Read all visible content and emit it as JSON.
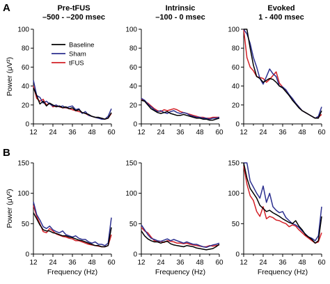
{
  "figure": {
    "panel_letters": [
      "A",
      "B"
    ],
    "columns": [
      {
        "title": [
          "Pre-tFUS",
          "–500 - –200 msec"
        ]
      },
      {
        "title": [
          "Intrinsic",
          "–100 - 0 msec"
        ]
      },
      {
        "title": [
          "Evoked",
          "1 - 400 msec"
        ]
      }
    ]
  },
  "colors": {
    "baseline": "#000000",
    "sham": "#2b2f8f",
    "tfus": "#d31f26"
  },
  "chart_data": [
    {
      "id": "A-pre",
      "type": "line",
      "xlabel": "",
      "ylabel": "Power (μV²)",
      "xlim": [
        12,
        60
      ],
      "ylim": [
        0,
        100
      ],
      "xticks": [
        12,
        24,
        36,
        48,
        60
      ],
      "yticks": [
        0,
        20,
        40,
        60,
        80,
        100
      ],
      "legend": {
        "placement": "top-right",
        "entries": [
          "Baseline",
          "Sham",
          "tFUS"
        ]
      },
      "series": [
        {
          "name": "Baseline",
          "color_key": "baseline",
          "x": [
            12,
            14,
            16,
            18,
            20,
            22,
            24,
            26,
            28,
            30,
            32,
            34,
            36,
            38,
            40,
            42,
            44,
            46,
            48,
            50,
            52,
            54,
            56,
            58,
            60
          ],
          "y": [
            38,
            30,
            21,
            24,
            19,
            22,
            20,
            18,
            19,
            17,
            18,
            16,
            17,
            14,
            15,
            12,
            11,
            10,
            8,
            7,
            7,
            6,
            5,
            6,
            12
          ]
        },
        {
          "name": "Sham",
          "color_key": "sham",
          "x": [
            12,
            14,
            16,
            18,
            20,
            22,
            24,
            26,
            28,
            30,
            32,
            34,
            36,
            38,
            40,
            42,
            44,
            46,
            48,
            50,
            52,
            54,
            56,
            58,
            60
          ],
          "y": [
            46,
            30,
            28,
            22,
            24,
            21,
            19,
            20,
            18,
            19,
            17,
            18,
            19,
            15,
            16,
            11,
            13,
            9,
            8,
            7,
            6,
            5,
            5,
            8,
            16
          ]
        },
        {
          "name": "tFUS",
          "color_key": "tfus",
          "x": [
            12,
            14,
            16,
            18,
            20,
            22,
            24,
            26,
            28,
            30,
            32,
            34,
            36,
            38,
            40,
            42,
            44,
            46,
            48,
            50,
            52,
            54,
            56,
            58,
            60
          ],
          "y": [
            40,
            27,
            24,
            26,
            20,
            22,
            18,
            19,
            18,
            17,
            17,
            16,
            15,
            14,
            13,
            12,
            11,
            9,
            8,
            7,
            6,
            6,
            5,
            6,
            11
          ]
        }
      ]
    },
    {
      "id": "A-intrinsic",
      "type": "line",
      "xlabel": "",
      "ylabel": "",
      "xlim": [
        12,
        60
      ],
      "ylim": [
        0,
        100
      ],
      "xticks": [
        12,
        24,
        36,
        48,
        60
      ],
      "yticks": [
        0,
        20,
        40,
        60,
        80,
        100
      ],
      "series": [
        {
          "name": "Baseline",
          "color_key": "baseline",
          "x": [
            12,
            14,
            16,
            18,
            20,
            22,
            24,
            26,
            28,
            30,
            32,
            34,
            36,
            38,
            40,
            42,
            44,
            46,
            48,
            50,
            52,
            54,
            56,
            58,
            60
          ],
          "y": [
            25,
            24,
            20,
            16,
            14,
            12,
            11,
            12,
            13,
            11,
            10,
            9,
            9,
            10,
            9,
            8,
            7,
            6,
            6,
            5,
            5,
            4,
            4,
            5,
            6
          ]
        },
        {
          "name": "Sham",
          "color_key": "sham",
          "x": [
            12,
            14,
            16,
            18,
            20,
            22,
            24,
            26,
            28,
            30,
            32,
            34,
            36,
            38,
            40,
            42,
            44,
            46,
            48,
            50,
            52,
            54,
            56,
            58,
            60
          ],
          "y": [
            27,
            25,
            21,
            18,
            15,
            13,
            14,
            12,
            11,
            13,
            14,
            12,
            11,
            12,
            11,
            9,
            8,
            7,
            7,
            6,
            6,
            5,
            6,
            6,
            7
          ]
        },
        {
          "name": "tFUS",
          "color_key": "tfus",
          "x": [
            12,
            14,
            16,
            18,
            20,
            22,
            24,
            26,
            28,
            30,
            32,
            34,
            36,
            38,
            40,
            42,
            44,
            46,
            48,
            50,
            52,
            54,
            56,
            58,
            60
          ],
          "y": [
            26,
            24,
            22,
            19,
            16,
            14,
            13,
            15,
            14,
            15,
            16,
            15,
            13,
            12,
            11,
            10,
            9,
            8,
            7,
            7,
            6,
            6,
            7,
            7,
            7
          ]
        }
      ]
    },
    {
      "id": "A-evoked",
      "type": "line",
      "xlabel": "",
      "ylabel": "",
      "xlim": [
        12,
        60
      ],
      "ylim": [
        0,
        100
      ],
      "xticks": [
        12,
        24,
        36,
        48,
        60
      ],
      "yticks": [
        0,
        20,
        40,
        60,
        80,
        100
      ],
      "series": [
        {
          "name": "Baseline",
          "color_key": "baseline",
          "x": [
            12,
            14,
            16,
            18,
            20,
            22,
            24,
            26,
            28,
            30,
            32,
            34,
            36,
            38,
            40,
            42,
            44,
            46,
            48,
            50,
            52,
            54,
            56,
            58,
            60
          ],
          "y": [
            100,
            100,
            80,
            62,
            50,
            48,
            44,
            46,
            48,
            47,
            44,
            40,
            38,
            34,
            30,
            25,
            21,
            17,
            14,
            12,
            10,
            8,
            6,
            6,
            14
          ]
        },
        {
          "name": "Sham",
          "color_key": "sham",
          "x": [
            12,
            14,
            16,
            18,
            20,
            22,
            24,
            26,
            28,
            30,
            32,
            34,
            36,
            38,
            40,
            42,
            44,
            46,
            48,
            50,
            52,
            54,
            56,
            58,
            60
          ],
          "y": [
            100,
            95,
            85,
            70,
            60,
            48,
            42,
            50,
            58,
            53,
            50,
            40,
            39,
            36,
            31,
            27,
            22,
            18,
            14,
            12,
            10,
            8,
            6,
            8,
            18
          ]
        },
        {
          "name": "tFUS",
          "color_key": "tfus",
          "x": [
            12,
            14,
            16,
            18,
            20,
            22,
            24,
            26,
            28,
            30,
            32,
            34,
            36,
            38,
            40,
            42,
            44,
            46,
            48,
            50,
            52,
            54,
            56,
            58,
            60
          ],
          "y": [
            100,
            70,
            60,
            56,
            50,
            49,
            48,
            44,
            47,
            51,
            55,
            43,
            39,
            35,
            30,
            26,
            22,
            18,
            14,
            12,
            10,
            8,
            6,
            7,
            10
          ]
        }
      ]
    },
    {
      "id": "B-pre",
      "type": "line",
      "xlabel": "Frequency (Hz)",
      "ylabel": "Power (μV²)",
      "xlim": [
        12,
        60
      ],
      "ylim": [
        0,
        150
      ],
      "xticks": [
        12,
        24,
        36,
        48,
        60
      ],
      "yticks": [
        0,
        50,
        100,
        150
      ],
      "series": [
        {
          "name": "Baseline",
          "color_key": "baseline",
          "x": [
            12,
            14,
            16,
            18,
            20,
            22,
            24,
            26,
            28,
            30,
            32,
            34,
            36,
            38,
            40,
            42,
            44,
            46,
            48,
            50,
            52,
            54,
            56,
            58,
            60
          ],
          "y": [
            68,
            58,
            48,
            40,
            38,
            38,
            35,
            34,
            32,
            30,
            30,
            28,
            27,
            25,
            23,
            22,
            20,
            18,
            16,
            14,
            14,
            12,
            12,
            14,
            44
          ]
        },
        {
          "name": "Sham",
          "color_key": "sham",
          "x": [
            12,
            14,
            16,
            18,
            20,
            22,
            24,
            26,
            28,
            30,
            32,
            34,
            36,
            38,
            40,
            42,
            44,
            46,
            48,
            50,
            52,
            54,
            56,
            58,
            60
          ],
          "y": [
            86,
            65,
            56,
            45,
            42,
            46,
            40,
            37,
            35,
            38,
            32,
            30,
            28,
            30,
            26,
            24,
            24,
            20,
            18,
            20,
            16,
            16,
            14,
            18,
            60
          ]
        },
        {
          "name": "tFUS",
          "color_key": "tfus",
          "x": [
            12,
            14,
            16,
            18,
            20,
            22,
            24,
            26,
            28,
            30,
            32,
            34,
            36,
            38,
            40,
            42,
            44,
            46,
            48,
            50,
            52,
            54,
            56,
            58,
            60
          ],
          "y": [
            80,
            62,
            50,
            37,
            35,
            42,
            38,
            33,
            31,
            29,
            28,
            26,
            25,
            22,
            22,
            20,
            18,
            16,
            15,
            14,
            13,
            12,
            12,
            14,
            32
          ]
        }
      ]
    },
    {
      "id": "B-intrinsic",
      "type": "line",
      "xlabel": "Frequency (Hz)",
      "ylabel": "",
      "xlim": [
        12,
        60
      ],
      "ylim": [
        0,
        150
      ],
      "xticks": [
        12,
        24,
        36,
        48,
        60
      ],
      "yticks": [
        0,
        50,
        100,
        150
      ],
      "series": [
        {
          "name": "Baseline",
          "color_key": "baseline",
          "x": [
            12,
            14,
            16,
            18,
            20,
            22,
            24,
            26,
            28,
            30,
            32,
            34,
            36,
            38,
            40,
            42,
            44,
            46,
            48,
            50,
            52,
            54,
            56,
            58,
            60
          ],
          "y": [
            38,
            30,
            25,
            22,
            20,
            20,
            18,
            20,
            21,
            17,
            15,
            14,
            13,
            12,
            14,
            13,
            12,
            10,
            9,
            8,
            7,
            8,
            9,
            12,
            16
          ]
        },
        {
          "name": "Sham",
          "color_key": "sham",
          "x": [
            12,
            14,
            16,
            18,
            20,
            22,
            24,
            26,
            28,
            30,
            32,
            34,
            36,
            38,
            40,
            42,
            44,
            46,
            48,
            50,
            52,
            54,
            56,
            58,
            60
          ],
          "y": [
            48,
            40,
            32,
            26,
            24,
            22,
            21,
            23,
            25,
            22,
            24,
            22,
            20,
            18,
            20,
            18,
            16,
            16,
            14,
            12,
            11,
            13,
            15,
            16,
            18
          ]
        },
        {
          "name": "tFUS",
          "color_key": "tfus",
          "x": [
            12,
            14,
            16,
            18,
            20,
            22,
            24,
            26,
            28,
            30,
            32,
            34,
            36,
            38,
            40,
            42,
            44,
            46,
            48,
            50,
            52,
            54,
            56,
            58,
            60
          ],
          "y": [
            44,
            38,
            35,
            28,
            22,
            20,
            21,
            19,
            22,
            21,
            20,
            18,
            18,
            17,
            18,
            16,
            15,
            14,
            13,
            12,
            12,
            14,
            13,
            14,
            15
          ]
        }
      ]
    },
    {
      "id": "B-evoked",
      "type": "line",
      "xlabel": "Frequency (Hz)",
      "ylabel": "",
      "xlim": [
        12,
        60
      ],
      "ylim": [
        0,
        150
      ],
      "xticks": [
        12,
        24,
        36,
        48,
        60
      ],
      "yticks": [
        0,
        50,
        100,
        150
      ],
      "series": [
        {
          "name": "Baseline",
          "color_key": "baseline",
          "x": [
            12,
            14,
            16,
            18,
            20,
            22,
            24,
            26,
            28,
            30,
            32,
            34,
            36,
            38,
            40,
            42,
            44,
            46,
            48,
            50,
            52,
            54,
            56,
            58,
            60
          ],
          "y": [
            150,
            125,
            108,
            100,
            92,
            80,
            75,
            70,
            72,
            68,
            65,
            62,
            58,
            55,
            52,
            50,
            55,
            46,
            40,
            32,
            28,
            24,
            18,
            22,
            62
          ]
        },
        {
          "name": "Sham",
          "color_key": "sham",
          "x": [
            12,
            14,
            16,
            18,
            20,
            22,
            24,
            26,
            28,
            30,
            32,
            34,
            36,
            38,
            40,
            42,
            44,
            46,
            48,
            50,
            52,
            54,
            56,
            58,
            60
          ],
          "y": [
            150,
            150,
            120,
            110,
            100,
            92,
            112,
            85,
            100,
            78,
            72,
            68,
            70,
            60,
            55,
            50,
            48,
            44,
            38,
            33,
            28,
            26,
            22,
            30,
            78
          ]
        },
        {
          "name": "tFUS",
          "color_key": "tfus",
          "x": [
            12,
            14,
            16,
            18,
            20,
            22,
            24,
            26,
            28,
            30,
            32,
            34,
            36,
            38,
            40,
            42,
            44,
            46,
            48,
            50,
            52,
            54,
            56,
            58,
            60
          ],
          "y": [
            145,
            115,
            96,
            88,
            70,
            62,
            78,
            58,
            62,
            60,
            56,
            55,
            52,
            50,
            45,
            48,
            46,
            40,
            35,
            30,
            26,
            22,
            18,
            20,
            35
          ]
        }
      ]
    }
  ]
}
